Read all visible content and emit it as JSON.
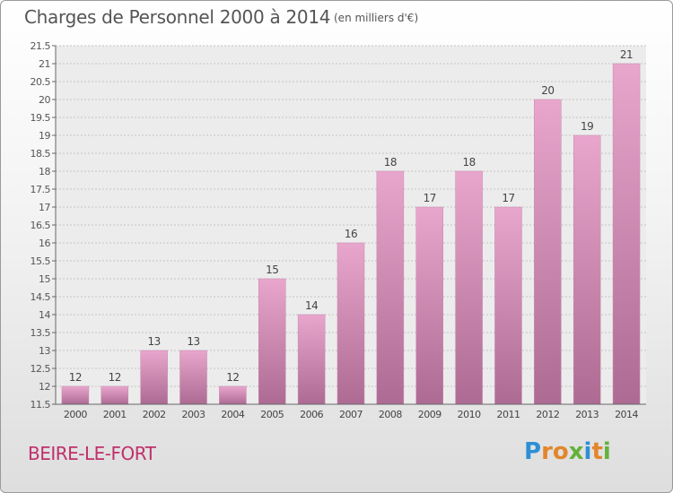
{
  "header": {
    "title": "Charges de Personnel 2000 à 2014",
    "subtitle": "(en milliers d'€)"
  },
  "footer": {
    "commune": "BEIRE-LE-FORT",
    "logo": [
      "P",
      "r",
      "o",
      "x",
      "i",
      "t",
      "i"
    ]
  },
  "colors": {
    "bar_top": "#e9a6cd",
    "bar_bottom": "#ad6b93",
    "logo": [
      "#2d8fd6",
      "#e2862b",
      "#e2862b",
      "#63b23a",
      "#2d8fd6",
      "#e2862b",
      "#63b23a"
    ]
  },
  "chart_data": {
    "type": "bar",
    "categories": [
      "2000",
      "2001",
      "2002",
      "2003",
      "2004",
      "2005",
      "2006",
      "2007",
      "2008",
      "2009",
      "2010",
      "2011",
      "2012",
      "2013",
      "2014"
    ],
    "values": [
      12,
      12,
      13,
      13,
      12,
      15,
      14,
      16,
      18,
      17,
      18,
      17,
      20,
      19,
      21
    ],
    "data_labels": [
      "12",
      "12",
      "13",
      "13",
      "12",
      "15",
      "14",
      "16",
      "18",
      "17",
      "18",
      "17",
      "20",
      "19",
      "21"
    ],
    "yticks": [
      "11.5",
      "12",
      "12.5",
      "13",
      "13.5",
      "14",
      "14.5",
      "15",
      "15.5",
      "16",
      "16.5",
      "17",
      "17.5",
      "18",
      "18.5",
      "19",
      "19.5",
      "20",
      "20.5",
      "21",
      "21.5"
    ],
    "ylim": [
      11.5,
      21.5
    ],
    "grid": true
  }
}
